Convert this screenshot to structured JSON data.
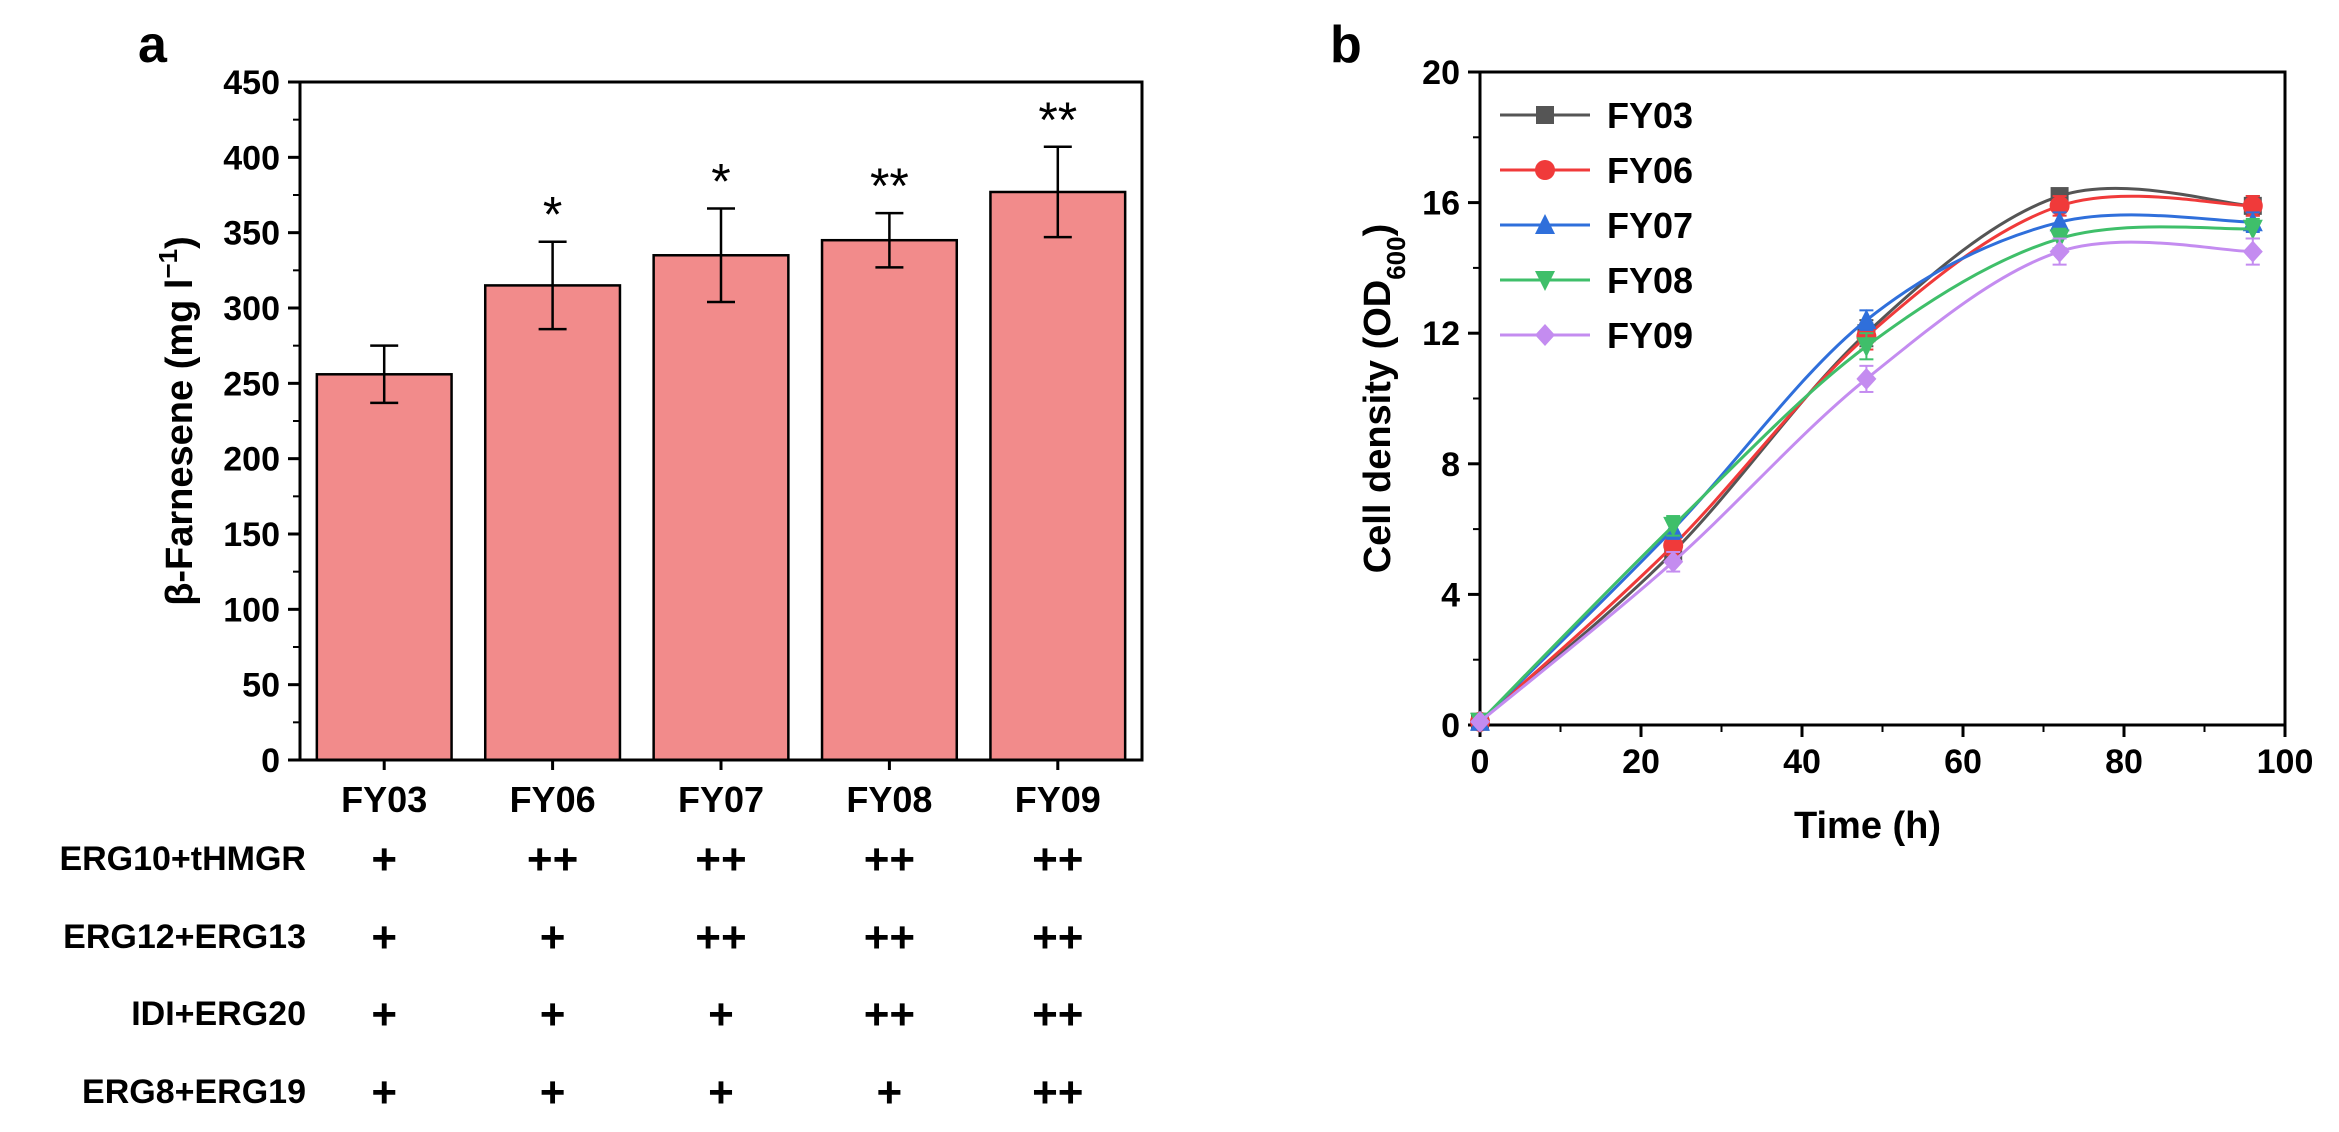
{
  "chart_data": [
    {
      "panel": "a",
      "type": "bar",
      "ylabel": "β-Farnesene (mg l",
      "ylabel_sup": "−1",
      "ylabel_close": ")",
      "ylim": [
        0,
        450
      ],
      "yticks": [
        0,
        50,
        100,
        150,
        200,
        250,
        300,
        350,
        400,
        450
      ],
      "categories": [
        "FY03",
        "FY06",
        "FY07",
        "FY08",
        "FY09"
      ],
      "values": [
        256,
        315,
        335,
        345,
        377
      ],
      "errors": [
        19,
        29,
        31,
        18,
        30
      ],
      "significance": [
        "",
        "*",
        "*",
        "**",
        "**"
      ],
      "bar_color": "#f28b8b",
      "genotype_table": {
        "rows": [
          {
            "label": "ERG10+tHMGR",
            "values": [
              "+",
              "++",
              "++",
              "++",
              "++"
            ]
          },
          {
            "label": "ERG12+ERG13",
            "values": [
              "+",
              "+",
              "++",
              "++",
              "++"
            ]
          },
          {
            "label": "IDI+ERG20",
            "values": [
              "+",
              "+",
              "+",
              "++",
              "++"
            ]
          },
          {
            "label": "ERG8+ERG19",
            "values": [
              "+",
              "+",
              "+",
              "+",
              "++"
            ]
          }
        ]
      }
    },
    {
      "panel": "b",
      "type": "line",
      "xlabel": "Time (h)",
      "ylabel": "Cell density (OD",
      "ylabel_sub": "600",
      "ylabel_close": ")",
      "xlim": [
        0,
        100
      ],
      "ylim": [
        0,
        20
      ],
      "xticks": [
        0,
        20,
        40,
        60,
        80,
        100
      ],
      "yticks": [
        0,
        4,
        8,
        12,
        16,
        20
      ],
      "x": [
        0,
        24,
        48,
        72,
        96
      ],
      "series": [
        {
          "name": "FY03",
          "color": "#555555",
          "marker": "square",
          "values": [
            0.1,
            5.3,
            12.0,
            16.2,
            15.9
          ],
          "errors": [
            0.05,
            0.3,
            0.4,
            0.2,
            0.3
          ]
        },
        {
          "name": "FY06",
          "color": "#f03a3a",
          "marker": "circle",
          "values": [
            0.1,
            5.5,
            11.9,
            15.9,
            15.9
          ],
          "errors": [
            0.05,
            0.3,
            0.4,
            0.3,
            0.3
          ]
        },
        {
          "name": "FY07",
          "color": "#2f6fdb",
          "marker": "triangle",
          "values": [
            0.1,
            6.0,
            12.4,
            15.4,
            15.4
          ],
          "errors": [
            0.05,
            0.3,
            0.3,
            0.3,
            0.3
          ]
        },
        {
          "name": "FY08",
          "color": "#3fbf6a",
          "marker": "triangle-down",
          "values": [
            0.1,
            6.1,
            11.6,
            14.9,
            15.2
          ],
          "errors": [
            0.05,
            0.3,
            0.4,
            0.3,
            0.3
          ]
        },
        {
          "name": "FY09",
          "color": "#c48cf0",
          "marker": "diamond",
          "values": [
            0.1,
            5.0,
            10.6,
            14.5,
            14.5
          ],
          "errors": [
            0.05,
            0.3,
            0.4,
            0.4,
            0.4
          ]
        }
      ]
    }
  ],
  "labels": {
    "panel_a": "a",
    "panel_b": "b"
  }
}
